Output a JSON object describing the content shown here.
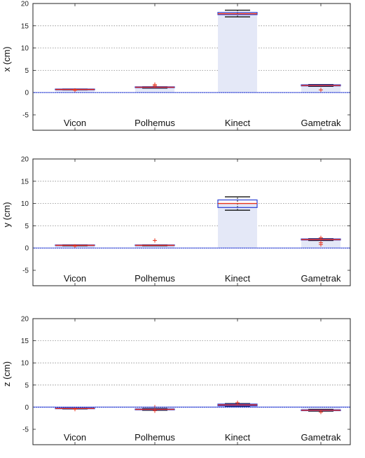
{
  "chart_data": [
    {
      "type": "box",
      "ylabel": "x (cm)",
      "ylim": [
        -5,
        20
      ],
      "yticks": [
        -5,
        0,
        5,
        10,
        15,
        20
      ],
      "categories": [
        "Vicon",
        "Polhemus",
        "Kinect",
        "Gametrak"
      ],
      "grid": "horizontal dotted",
      "zero_line": 0,
      "boxes": [
        {
          "category": "Vicon",
          "median": 0.7,
          "q1": 0.6,
          "q3": 0.8,
          "whisker_low": 0.6,
          "whisker_high": 0.8,
          "outliers": [
            0.5
          ]
        },
        {
          "category": "Polhemus",
          "median": 1.2,
          "q1": 1.1,
          "q3": 1.3,
          "whisker_low": 1.0,
          "whisker_high": 1.3,
          "outliers": [
            1.8,
            1.5
          ]
        },
        {
          "category": "Kinect",
          "median": 17.7,
          "q1": 17.5,
          "q3": 18.0,
          "whisker_low": 17.0,
          "whisker_high": 18.5,
          "outliers": []
        },
        {
          "category": "Gametrak",
          "median": 1.6,
          "q1": 1.5,
          "q3": 1.75,
          "whisker_low": 1.4,
          "whisker_high": 1.8,
          "outliers": [
            0.6
          ]
        }
      ]
    },
    {
      "type": "box",
      "ylabel": "y (cm)",
      "ylim": [
        -5,
        20
      ],
      "yticks": [
        -5,
        0,
        5,
        10,
        15,
        20
      ],
      "categories": [
        "Vicon",
        "Polhemus",
        "Kinect",
        "Gametrak"
      ],
      "grid": "horizontal dotted",
      "zero_line": 0,
      "boxes": [
        {
          "category": "Vicon",
          "median": 0.6,
          "q1": 0.55,
          "q3": 0.7,
          "whisker_low": 0.5,
          "whisker_high": 0.7,
          "outliers": [
            0.4
          ]
        },
        {
          "category": "Polhemus",
          "median": 0.6,
          "q1": 0.55,
          "q3": 0.7,
          "whisker_low": 0.5,
          "whisker_high": 0.7,
          "outliers": [
            1.7
          ]
        },
        {
          "category": "Kinect",
          "median": 10.0,
          "q1": 9.1,
          "q3": 10.8,
          "whisker_low": 8.5,
          "whisker_high": 11.5,
          "outliers": []
        },
        {
          "category": "Gametrak",
          "median": 1.9,
          "q1": 1.8,
          "q3": 2.05,
          "whisker_low": 1.7,
          "whisker_high": 2.1,
          "outliers": [
            2.3,
            1.2,
            0.8
          ]
        }
      ]
    },
    {
      "type": "box",
      "ylabel": "z (cm)",
      "ylim": [
        -5,
        20
      ],
      "yticks": [
        -5,
        0,
        5,
        10,
        15,
        20
      ],
      "categories": [
        "Vicon",
        "Polhemus",
        "Kinect",
        "Gametrak"
      ],
      "grid": "horizontal dotted",
      "zero_line": 0,
      "boxes": [
        {
          "category": "Vicon",
          "median": -0.3,
          "q1": -0.35,
          "q3": -0.2,
          "whisker_low": -0.4,
          "whisker_high": -0.15,
          "outliers": [
            -0.45
          ]
        },
        {
          "category": "Polhemus",
          "median": -0.5,
          "q1": -0.6,
          "q3": -0.4,
          "whisker_low": -0.7,
          "whisker_high": -0.3,
          "outliers": [
            0.0,
            -0.8
          ]
        },
        {
          "category": "Kinect",
          "median": 0.5,
          "q1": 0.3,
          "q3": 0.7,
          "whisker_low": 0.2,
          "whisker_high": 0.8,
          "outliers": [
            1.0
          ]
        },
        {
          "category": "Gametrak",
          "median": -0.7,
          "q1": -0.8,
          "q3": -0.6,
          "whisker_low": -0.9,
          "whisker_high": -0.5,
          "outliers": [
            -1.1
          ]
        }
      ]
    }
  ],
  "colors": {
    "median": "#e8331c",
    "box": "#2a3fd4",
    "whisker": "#111111",
    "outlier": "#e8331c",
    "fill": "#e4e8f7",
    "zero_line": "#2a3fd4",
    "grid": "#8a8a8a",
    "frame": "#222222"
  }
}
